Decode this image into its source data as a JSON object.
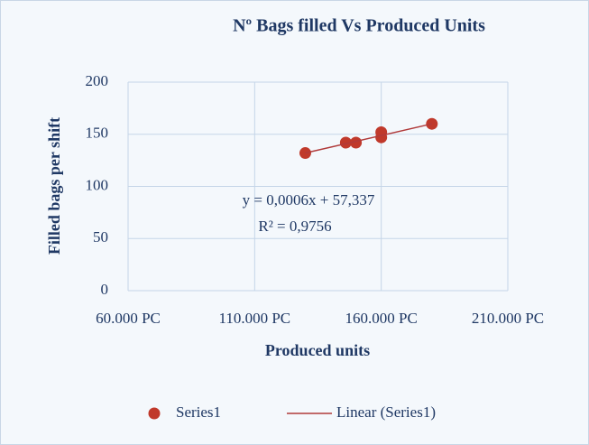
{
  "chart_data": {
    "type": "scatter",
    "title": "Nº Bags filled Vs Produced Units",
    "xlabel": "Produced units",
    "ylabel": "Filled bags per shift",
    "series": [
      {
        "name": "Series1",
        "color": "#c0392b",
        "x": [
          130000,
          146000,
          150000,
          160000,
          160000,
          180000
        ],
        "values": [
          132,
          142,
          142,
          147,
          152,
          160
        ]
      },
      {
        "name": "Linear (Series1)",
        "type": "line",
        "color": "#b03a3a",
        "x": [
          130000,
          180000
        ],
        "values": [
          132,
          160
        ]
      }
    ],
    "annotations": [
      "y = 0,0006x + 57,337",
      "R² = 0,9756"
    ],
    "xlim": [
      60000,
      210000
    ],
    "xticks": [
      {
        "value": 60000,
        "label": "60.000 PC"
      },
      {
        "value": 110000,
        "label": "110.000 PC"
      },
      {
        "value": 160000,
        "label": "160.000 PC"
      },
      {
        "value": 210000,
        "label": "210.000 PC"
      }
    ],
    "ylim": [
      0,
      200
    ],
    "yticks": [
      0,
      50,
      100,
      150,
      200
    ],
    "grid": true,
    "legend": "bottom"
  }
}
